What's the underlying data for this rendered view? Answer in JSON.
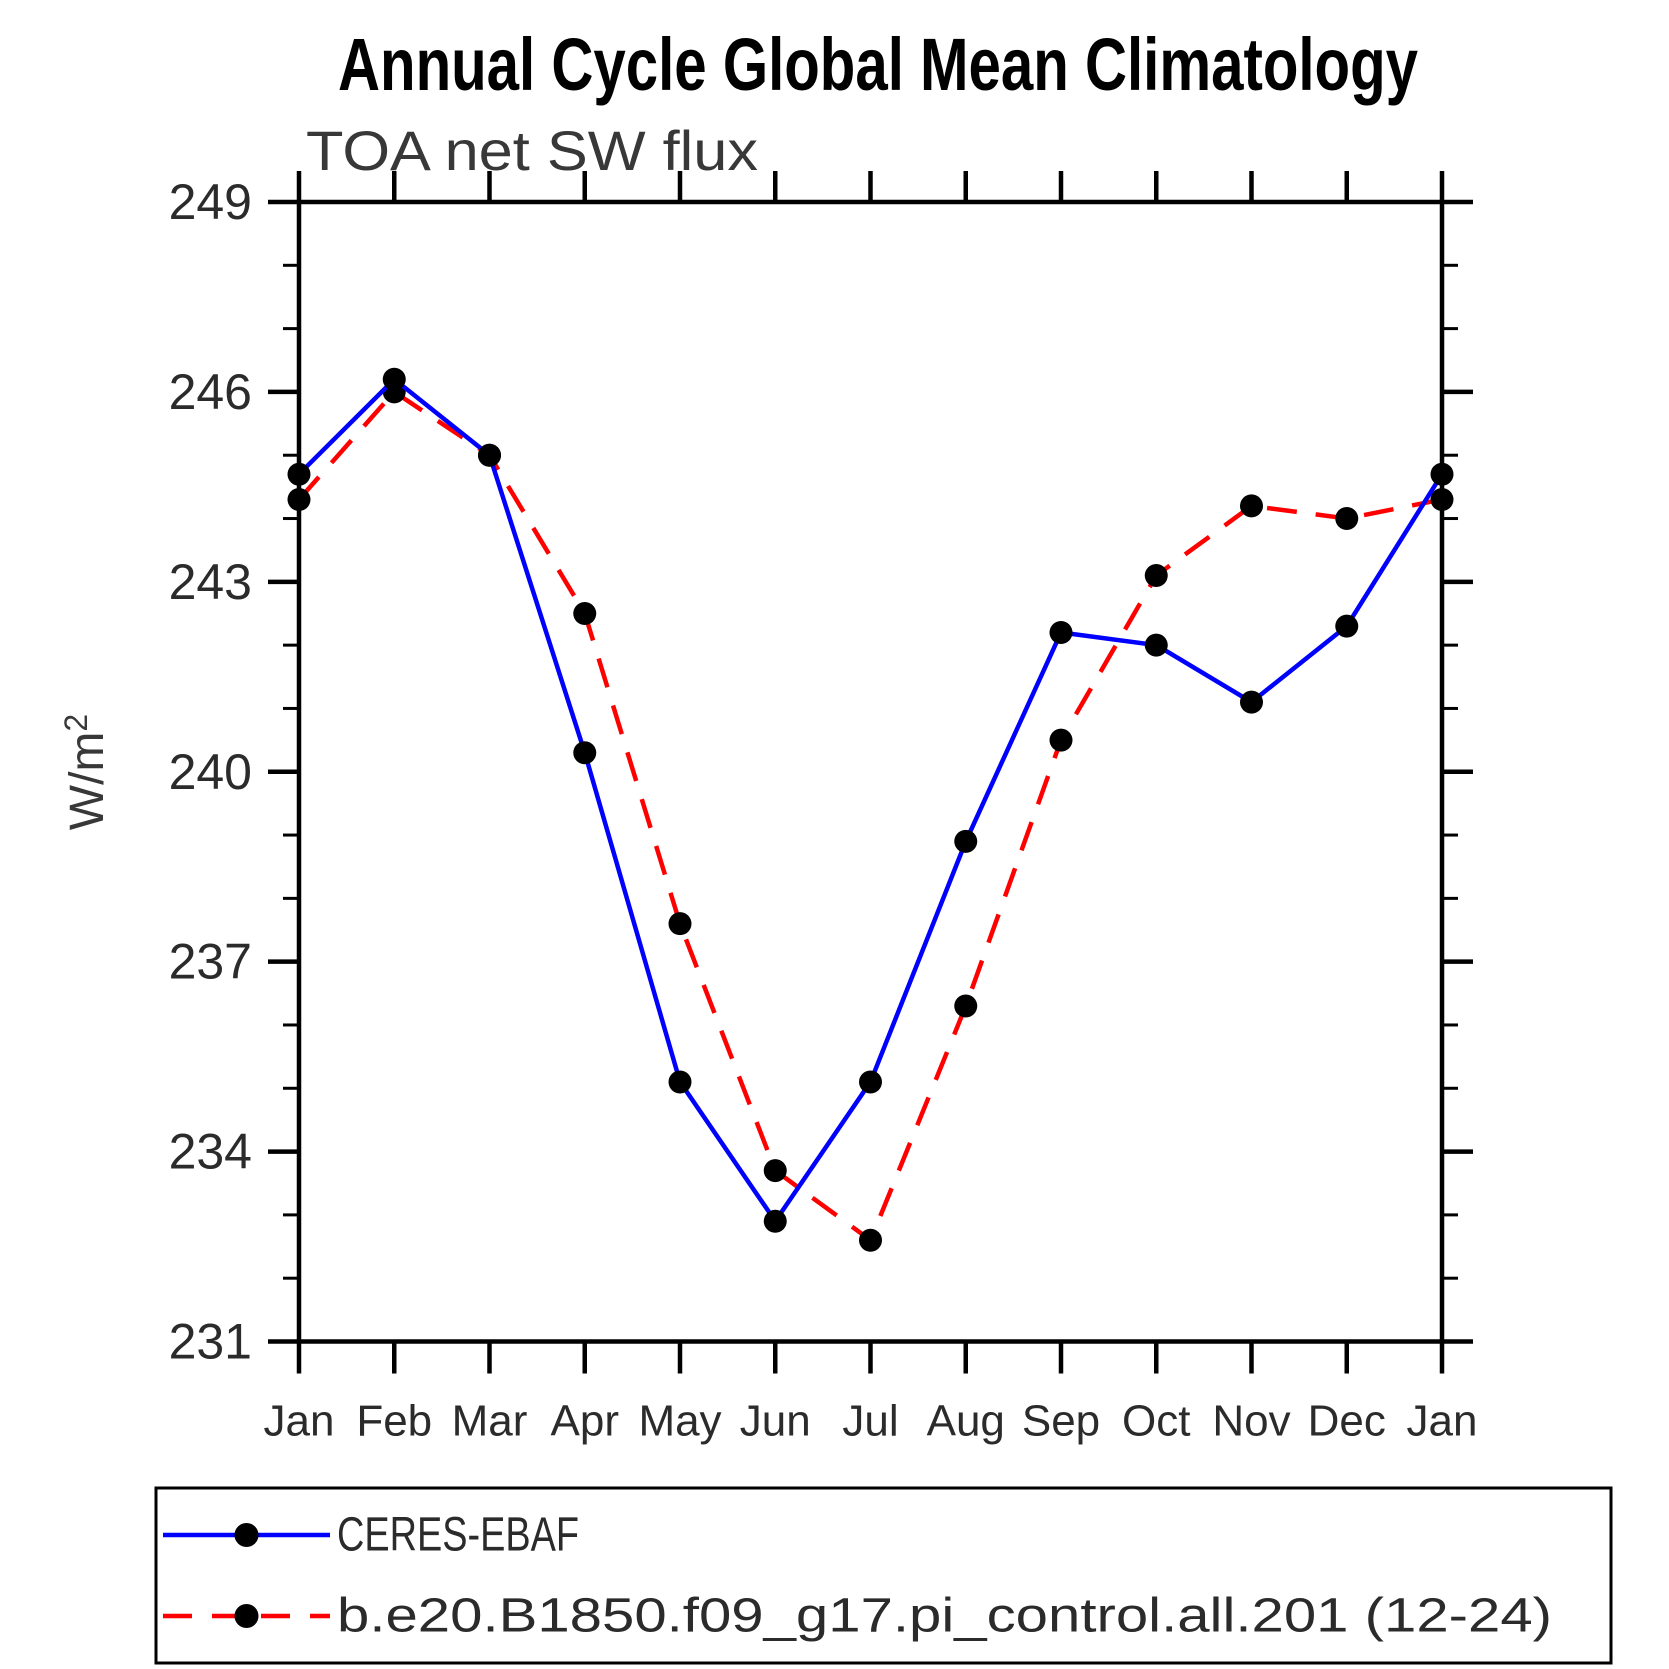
{
  "page": {
    "background": "#ffffff"
  },
  "chart_data": {
    "type": "line",
    "title": "Annual Cycle Global Mean Climatology",
    "subtitle": "TOA net SW flux",
    "ylabel": {
      "base": "W/m",
      "sup": "2",
      "display": "W/m²"
    },
    "xlabel": "",
    "categories": [
      "Jan",
      "Feb",
      "Mar",
      "Apr",
      "May",
      "Jun",
      "Jul",
      "Aug",
      "Sep",
      "Oct",
      "Nov",
      "Dec",
      "Jan"
    ],
    "ylim": [
      231,
      249
    ],
    "yticks_major": [
      231,
      234,
      237,
      240,
      243,
      246,
      249
    ],
    "ytick_minor_step": 1,
    "grid": false,
    "legend_position": "bottom-box",
    "axis_color": "#000000",
    "text_color": "#2b2b2b",
    "marker_color": "#000000",
    "series": [
      {
        "name": "CERES-EBAF",
        "color": "#0000ff",
        "line_style": "solid",
        "marker": "filled-circle",
        "values": [
          244.7,
          246.2,
          245.0,
          240.3,
          235.1,
          232.9,
          235.1,
          238.9,
          242.2,
          242.0,
          241.1,
          242.3,
          244.7
        ]
      },
      {
        "name": "b.e20.B1850.f09_g17.pi_control.all.201 (12-24)",
        "color": "#ff0000",
        "line_style": "dashed",
        "marker": "filled-circle",
        "values": [
          244.3,
          246.0,
          245.0,
          242.5,
          237.6,
          233.7,
          232.6,
          236.3,
          240.5,
          243.1,
          244.2,
          244.0,
          244.3
        ]
      }
    ]
  }
}
